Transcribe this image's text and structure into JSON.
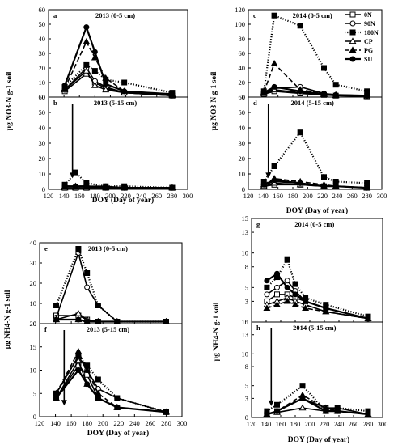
{
  "figure": {
    "xlabel": "DOY (Day of year)",
    "ylabel_no3": "µg NO3-N g-1 soil",
    "ylabel_nh4": "µg NH4-N g-1 soil",
    "legend": [
      "0N",
      "90N",
      "180N",
      "CP",
      "PG",
      "SU"
    ]
  },
  "chart_data": [
    {
      "id": "a",
      "type": "line",
      "title": "2013 (0-5 cm)",
      "ylim": [
        0,
        60
      ],
      "yticks": [
        0,
        10,
        20,
        30,
        40,
        50,
        60
      ],
      "xlim": [
        120,
        300
      ],
      "series": [
        {
          "name": "0N",
          "x": [
            141,
            169,
            180,
            194,
            218,
            280
          ],
          "y": [
            4,
            16,
            10,
            6,
            3,
            1
          ]
        },
        {
          "name": "90N",
          "x": [
            141,
            169,
            180,
            194,
            218,
            280
          ],
          "y": [
            5,
            20,
            11,
            7,
            3,
            1
          ]
        },
        {
          "name": "180N",
          "x": [
            141,
            169,
            180,
            194,
            218,
            280
          ],
          "y": [
            7,
            22,
            18,
            12,
            10,
            3
          ]
        },
        {
          "name": "CP",
          "x": [
            141,
            169,
            180,
            194,
            218,
            280
          ],
          "y": [
            5,
            18,
            8,
            5,
            3,
            1
          ]
        },
        {
          "name": "PG",
          "x": [
            141,
            169,
            180,
            194,
            218,
            280
          ],
          "y": [
            6,
            38,
            27,
            13,
            4,
            2
          ]
        },
        {
          "name": "SU",
          "x": [
            141,
            169,
            180,
            194,
            218,
            280
          ],
          "y": [
            8,
            48,
            31,
            9,
            4,
            2
          ]
        }
      ]
    },
    {
      "id": "b",
      "type": "line",
      "title": "2013 (5-15 cm)",
      "ylim": [
        0,
        60
      ],
      "yticks": [
        0,
        10,
        20,
        30,
        40,
        50,
        60
      ],
      "xlim": [
        120,
        300
      ],
      "arrow_x": 151,
      "series": [
        {
          "name": "0N",
          "x": [
            141,
            155,
            169,
            194,
            218,
            280
          ],
          "y": [
            1,
            1,
            1,
            1,
            1,
            1
          ]
        },
        {
          "name": "90N",
          "x": [
            141,
            155,
            169,
            194,
            218,
            280
          ],
          "y": [
            2,
            2,
            2,
            2,
            1,
            1
          ]
        },
        {
          "name": "180N",
          "x": [
            141,
            155,
            169,
            194,
            218,
            280
          ],
          "y": [
            3,
            11,
            4,
            2,
            2,
            1
          ]
        },
        {
          "name": "CP",
          "x": [
            141,
            155,
            169,
            194,
            218,
            280
          ],
          "y": [
            1,
            1,
            1,
            1,
            1,
            1
          ]
        },
        {
          "name": "PG",
          "x": [
            141,
            155,
            169,
            194,
            218,
            280
          ],
          "y": [
            2,
            2,
            2,
            1,
            1,
            1
          ]
        },
        {
          "name": "SU",
          "x": [
            141,
            155,
            169,
            194,
            218,
            280
          ],
          "y": [
            2,
            2,
            2,
            1,
            1,
            1
          ]
        }
      ]
    },
    {
      "id": "c",
      "type": "line",
      "title": "2014 (0-5 cm)",
      "ylim": [
        0,
        120
      ],
      "yticks": [
        0,
        20,
        40,
        60,
        80,
        100,
        120
      ],
      "xlim": [
        120,
        300
      ],
      "series": [
        {
          "name": "0N",
          "x": [
            141,
            155,
            190,
            222,
            238,
            280
          ],
          "y": [
            4,
            8,
            5,
            3,
            2,
            1
          ]
        },
        {
          "name": "90N",
          "x": [
            141,
            155,
            190,
            222,
            238,
            280
          ],
          "y": [
            6,
            12,
            14,
            5,
            3,
            2
          ]
        },
        {
          "name": "180N",
          "x": [
            141,
            155,
            190,
            222,
            238,
            280
          ],
          "y": [
            8,
            112,
            98,
            40,
            17,
            8
          ]
        },
        {
          "name": "CP",
          "x": [
            141,
            155,
            190,
            222,
            238,
            280
          ],
          "y": [
            5,
            10,
            6,
            4,
            2,
            1
          ]
        },
        {
          "name": "PG",
          "x": [
            141,
            155,
            190,
            222,
            238,
            280
          ],
          "y": [
            7,
            46,
            10,
            5,
            3,
            2
          ]
        },
        {
          "name": "SU",
          "x": [
            141,
            155,
            190,
            222,
            238,
            280
          ],
          "y": [
            6,
            14,
            8,
            4,
            3,
            2
          ]
        }
      ]
    },
    {
      "id": "d",
      "type": "line",
      "title": "2014 (5-15 cm)",
      "ylim": [
        0,
        60
      ],
      "yticks": [
        0,
        10,
        20,
        30,
        40,
        50,
        60
      ],
      "xlim": [
        120,
        300
      ],
      "arrow_x": 147,
      "series": [
        {
          "name": "0N",
          "x": [
            141,
            155,
            190,
            222,
            238,
            280
          ],
          "y": [
            2,
            3,
            3,
            2,
            2,
            1
          ]
        },
        {
          "name": "90N",
          "x": [
            141,
            155,
            190,
            222,
            238,
            280
          ],
          "y": [
            3,
            5,
            4,
            2,
            2,
            1
          ]
        },
        {
          "name": "180N",
          "x": [
            141,
            155,
            190,
            222,
            238,
            280
          ],
          "y": [
            5,
            15,
            37,
            8,
            5,
            4
          ]
        },
        {
          "name": "CP",
          "x": [
            141,
            155,
            190,
            222,
            238,
            280
          ],
          "y": [
            2,
            4,
            3,
            2,
            2,
            1
          ]
        },
        {
          "name": "PG",
          "x": [
            141,
            155,
            190,
            222,
            238,
            280
          ],
          "y": [
            3,
            7,
            5,
            3,
            2,
            1
          ]
        },
        {
          "name": "SU",
          "x": [
            141,
            155,
            190,
            222,
            238,
            280
          ],
          "y": [
            3,
            6,
            4,
            2,
            2,
            1
          ]
        }
      ]
    },
    {
      "id": "e",
      "type": "line",
      "title": "2013 (0-5 cm)",
      "ylim": [
        0,
        40
      ],
      "yticks": [
        0,
        10,
        20,
        30,
        40
      ],
      "xlim": [
        120,
        300
      ],
      "series": [
        {
          "name": "0N",
          "x": [
            141,
            169,
            180,
            194,
            218,
            280
          ],
          "y": [
            4,
            4,
            2,
            1,
            1,
            1
          ]
        },
        {
          "name": "90N",
          "x": [
            141,
            169,
            180,
            194,
            218,
            280
          ],
          "y": [
            3,
            35,
            18,
            9,
            1,
            1
          ]
        },
        {
          "name": "180N",
          "x": [
            141,
            169,
            180,
            194,
            218,
            280
          ],
          "y": [
            9,
            37,
            25,
            9,
            1,
            1
          ]
        },
        {
          "name": "CP",
          "x": [
            141,
            169,
            180,
            194,
            218,
            280
          ],
          "y": [
            2,
            5,
            2,
            1,
            1,
            1
          ]
        },
        {
          "name": "PG",
          "x": [
            141,
            169,
            180,
            194,
            218,
            280
          ],
          "y": [
            2,
            2,
            1,
            1,
            1,
            1
          ]
        },
        {
          "name": "SU",
          "x": [
            141,
            169,
            180,
            194,
            218,
            280
          ],
          "y": [
            2,
            2,
            1,
            1,
            1,
            1
          ]
        }
      ]
    },
    {
      "id": "f",
      "type": "line",
      "title": "2013 (5-15 cm)",
      "ylim": [
        0,
        20
      ],
      "yticks": [
        0,
        5,
        10,
        15,
        20
      ],
      "xlim": [
        120,
        300
      ],
      "arrow_x": 151,
      "series": [
        {
          "name": "0N",
          "x": [
            141,
            169,
            180,
            194,
            218,
            280
          ],
          "y": [
            4,
            11,
            9,
            4,
            2,
            1
          ]
        },
        {
          "name": "90N",
          "x": [
            141,
            169,
            180,
            194,
            218,
            280
          ],
          "y": [
            5,
            13,
            10,
            6,
            4,
            1
          ]
        },
        {
          "name": "180N",
          "x": [
            141,
            169,
            180,
            194,
            218,
            280
          ],
          "y": [
            5,
            13,
            11,
            8,
            4,
            1
          ]
        },
        {
          "name": "CP",
          "x": [
            141,
            169,
            180,
            194,
            218,
            280
          ],
          "y": [
            4,
            12,
            7,
            4,
            2,
            1
          ]
        },
        {
          "name": "PG",
          "x": [
            141,
            169,
            180,
            194,
            218,
            280
          ],
          "y": [
            5,
            14,
            10,
            5,
            2,
            1
          ]
        },
        {
          "name": "SU",
          "x": [
            141,
            169,
            180,
            194,
            218,
            280
          ],
          "y": [
            4,
            10,
            7,
            4,
            2,
            1
          ]
        }
      ]
    },
    {
      "id": "g",
      "type": "line",
      "title": "2014 (0-5 cm)",
      "ylim": [
        0,
        15
      ],
      "yticks": [
        0,
        3,
        5,
        8,
        10,
        13,
        15
      ],
      "xlim": [
        120,
        300
      ],
      "series": [
        {
          "name": "0N",
          "x": [
            141,
            155,
            169,
            180,
            194,
            222,
            280
          ],
          "y": [
            3,
            4,
            4,
            3.5,
            3,
            2,
            0.5
          ]
        },
        {
          "name": "90N",
          "x": [
            141,
            155,
            169,
            180,
            194,
            222,
            280
          ],
          "y": [
            4,
            5,
            6,
            4.5,
            3,
            2,
            0.5
          ]
        },
        {
          "name": "180N",
          "x": [
            141,
            155,
            169,
            180,
            194,
            222,
            280
          ],
          "y": [
            5,
            6.5,
            9,
            5.5,
            3.5,
            2.5,
            0.8
          ]
        },
        {
          "name": "CP",
          "x": [
            141,
            155,
            169,
            180,
            194,
            222,
            280
          ],
          "y": [
            2.5,
            3,
            3.5,
            3,
            2.5,
            1.5,
            0.5
          ]
        },
        {
          "name": "PG",
          "x": [
            141,
            155,
            169,
            180,
            194,
            222,
            280
          ],
          "y": [
            2,
            2.5,
            3,
            2.5,
            2,
            1.5,
            0.5
          ]
        },
        {
          "name": "SU",
          "x": [
            141,
            155,
            169,
            180,
            194,
            222,
            280
          ],
          "y": [
            6,
            7,
            5,
            4,
            3,
            2,
            0.5
          ]
        }
      ]
    },
    {
      "id": "h",
      "type": "line",
      "title": "2014 (5-15 cm)",
      "ylim": [
        0,
        15
      ],
      "yticks": [
        0,
        3,
        5,
        8,
        10,
        13,
        15
      ],
      "xlim": [
        120,
        300
      ],
      "arrow_x": 147,
      "series": [
        {
          "name": "0N",
          "x": [
            141,
            155,
            190,
            222,
            238,
            280
          ],
          "y": [
            0.5,
            1,
            3,
            1.5,
            1,
            0.5
          ]
        },
        {
          "name": "90N",
          "x": [
            141,
            155,
            190,
            222,
            238,
            280
          ],
          "y": [
            0.5,
            1,
            3,
            1.5,
            1.5,
            0.5
          ]
        },
        {
          "name": "180N",
          "x": [
            141,
            155,
            190,
            222,
            238,
            280
          ],
          "y": [
            1,
            2,
            5,
            1,
            1.5,
            1
          ]
        },
        {
          "name": "CP",
          "x": [
            141,
            155,
            190,
            222,
            238,
            280
          ],
          "y": [
            0.5,
            0.8,
            1.5,
            1,
            1,
            0.5
          ]
        },
        {
          "name": "PG",
          "x": [
            141,
            155,
            190,
            222,
            238,
            280
          ],
          "y": [
            0.5,
            1,
            3.5,
            1.5,
            1,
            0.5
          ]
        },
        {
          "name": "SU",
          "x": [
            141,
            155,
            190,
            222,
            238,
            280
          ],
          "y": [
            0.5,
            1,
            3,
            1,
            1,
            0.5
          ]
        }
      ]
    }
  ]
}
